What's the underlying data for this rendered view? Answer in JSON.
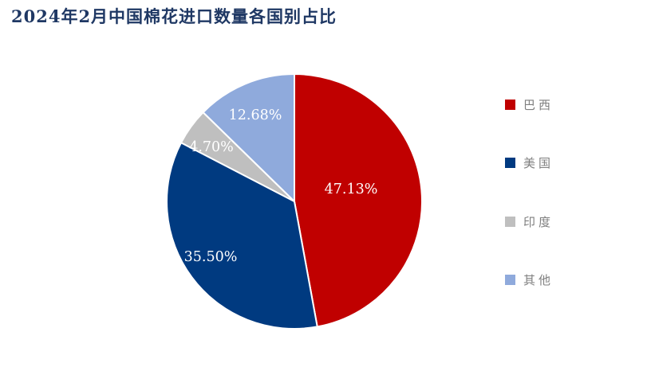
{
  "page": {
    "title": "2024年2月中国棉花进口数量各国别占比"
  },
  "colors": {
    "title_text": "#1F3864",
    "legend_text": "#7F7F7F",
    "background": "#FFFFFF"
  },
  "chart_data": {
    "type": "pie",
    "title": "2024年2月中国棉花进口数量各国别占比",
    "categories": [
      "巴西",
      "美国",
      "印度",
      "其他"
    ],
    "values": [
      47.13,
      35.5,
      4.7,
      12.68
    ],
    "value_labels": [
      "47.13%",
      "35.50%",
      "4.70%",
      "12.68%"
    ],
    "slice_colors": [
      "#C00000",
      "#003A80",
      "#BFBFBF",
      "#8FAADC"
    ],
    "start_angle_deg": 0,
    "direction": "clockwise",
    "legend_position": "right",
    "data_label_color": "#FFFFFF",
    "slice_border_color": "#FFFFFF"
  }
}
